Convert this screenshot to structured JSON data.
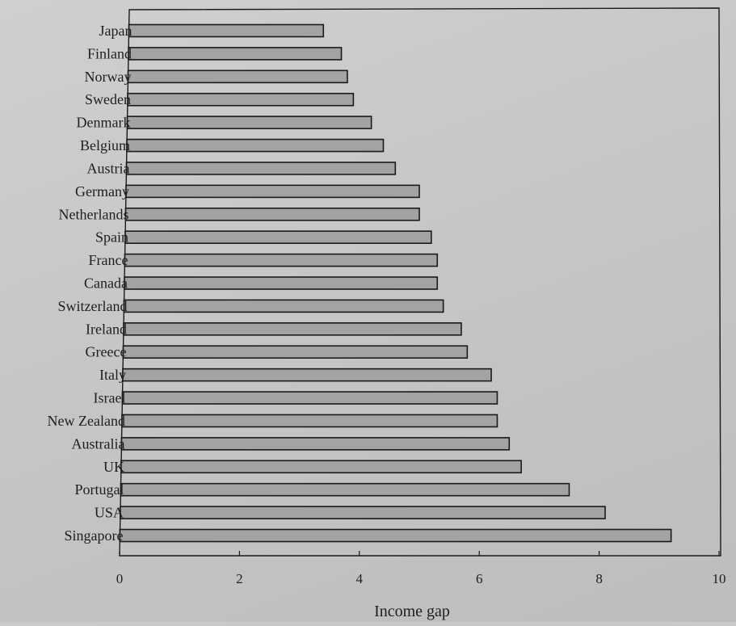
{
  "chart_data": {
    "type": "bar",
    "orientation": "horizontal",
    "title": "",
    "xlabel": "Income gap",
    "ylabel": "",
    "xlim": [
      0,
      10
    ],
    "xticks": [
      0,
      2,
      4,
      6,
      8,
      10
    ],
    "xtick_labels": [
      "0",
      "2",
      "4",
      "6",
      "8",
      "10"
    ],
    "grid": false,
    "categories": [
      "Japan",
      "Finland",
      "Norway",
      "Sweden",
      "Denmark",
      "Belgium",
      "Austria",
      "Germany",
      "Netherlands",
      "Spain",
      "France",
      "Canada",
      "Switzerland",
      "Ireland",
      "Greece",
      "Italy",
      "Israel",
      "New Zealand",
      "Australia",
      "UK",
      "Portugal",
      "USA",
      "Singapore"
    ],
    "values": [
      3.4,
      3.7,
      3.8,
      3.9,
      4.2,
      4.4,
      4.6,
      5.0,
      5.0,
      5.2,
      5.3,
      5.3,
      5.4,
      5.7,
      5.8,
      6.2,
      6.3,
      6.3,
      6.5,
      6.7,
      7.5,
      8.1,
      9.2
    ],
    "colors": {
      "bar_fill": "#a3a4a2",
      "bar_stroke": "#1a1a1a"
    }
  }
}
